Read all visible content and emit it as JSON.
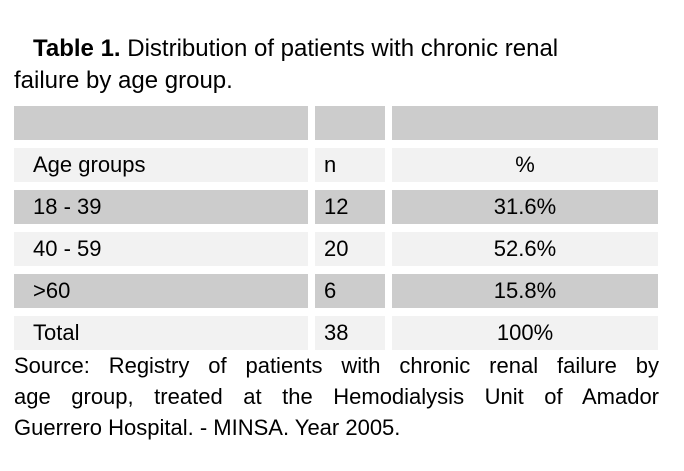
{
  "page": {
    "background": "#ffffff",
    "text_color": "#000000",
    "row_dark_color": "#cccccc",
    "row_light_color": "#f2f2f2"
  },
  "title": {
    "bold": "Table 1.",
    "line1_rest": "Distribution of patients with chronic renal",
    "line2": "failure by age group."
  },
  "table": {
    "header": {
      "age": "Age groups",
      "n": "n",
      "pct": "%"
    },
    "rows": [
      {
        "age": "18 - 39",
        "n": "12",
        "pct": "31.6%"
      },
      {
        "age": "40 - 59",
        "n": "20",
        "pct": "52.6%"
      },
      {
        "age": ">60",
        "n": "6",
        "pct": "15.8%"
      },
      {
        "age": "Total",
        "n": "38",
        "pct": "100%"
      }
    ]
  },
  "source": {
    "lines": [
      "Source: Registry of patients with chronic renal failure by",
      "age group, treated at the Hemodialysis Unit of Amador",
      "Guerrero Hospital. - MINSA. Year 2005."
    ]
  }
}
